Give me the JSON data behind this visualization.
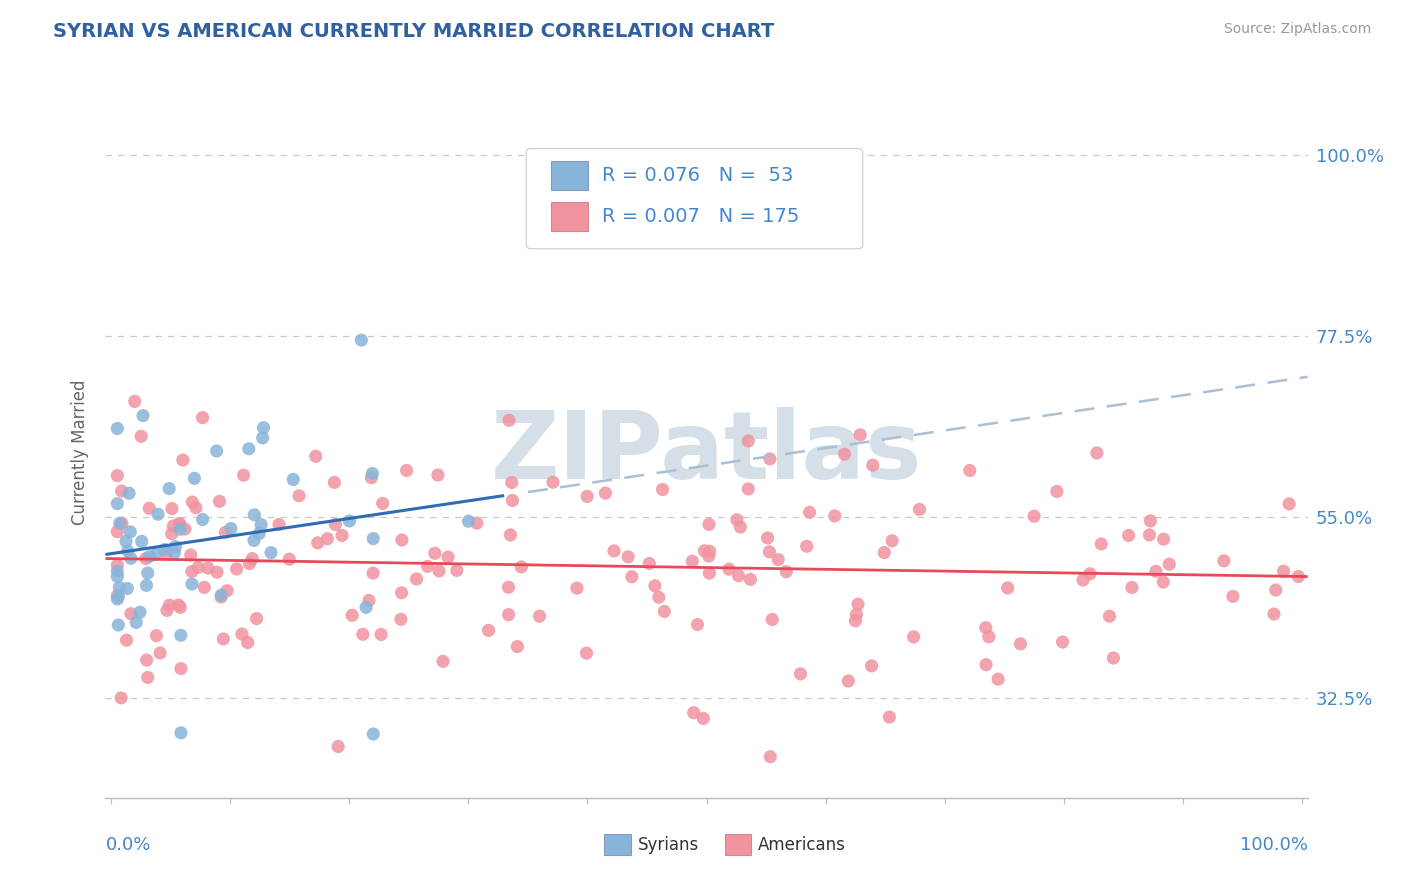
{
  "title": "SYRIAN VS AMERICAN CURRENTLY MARRIED CORRELATION CHART",
  "source": "Source: ZipAtlas.com",
  "ylabel": "Currently Married",
  "ylabel_right_labels": [
    "100.0%",
    "77.5%",
    "55.0%",
    "32.5%"
  ],
  "ylabel_right_values": [
    1.0,
    0.775,
    0.55,
    0.325
  ],
  "legend1_r": "0.076",
  "legend1_n": "53",
  "legend2_r": "0.007",
  "legend2_n": "175",
  "syrian_color": "#89b4d9",
  "american_color": "#f0939f",
  "syrian_line_color": "#2e6db4",
  "american_line_color": "#e8485a",
  "dash_line_color": "#aabfd4",
  "background_color": "#ffffff",
  "grid_color": "#c8c8c8",
  "title_color": "#3060a0",
  "axis_label_color": "#4488cc",
  "watermark_color": "#d5dfe8"
}
